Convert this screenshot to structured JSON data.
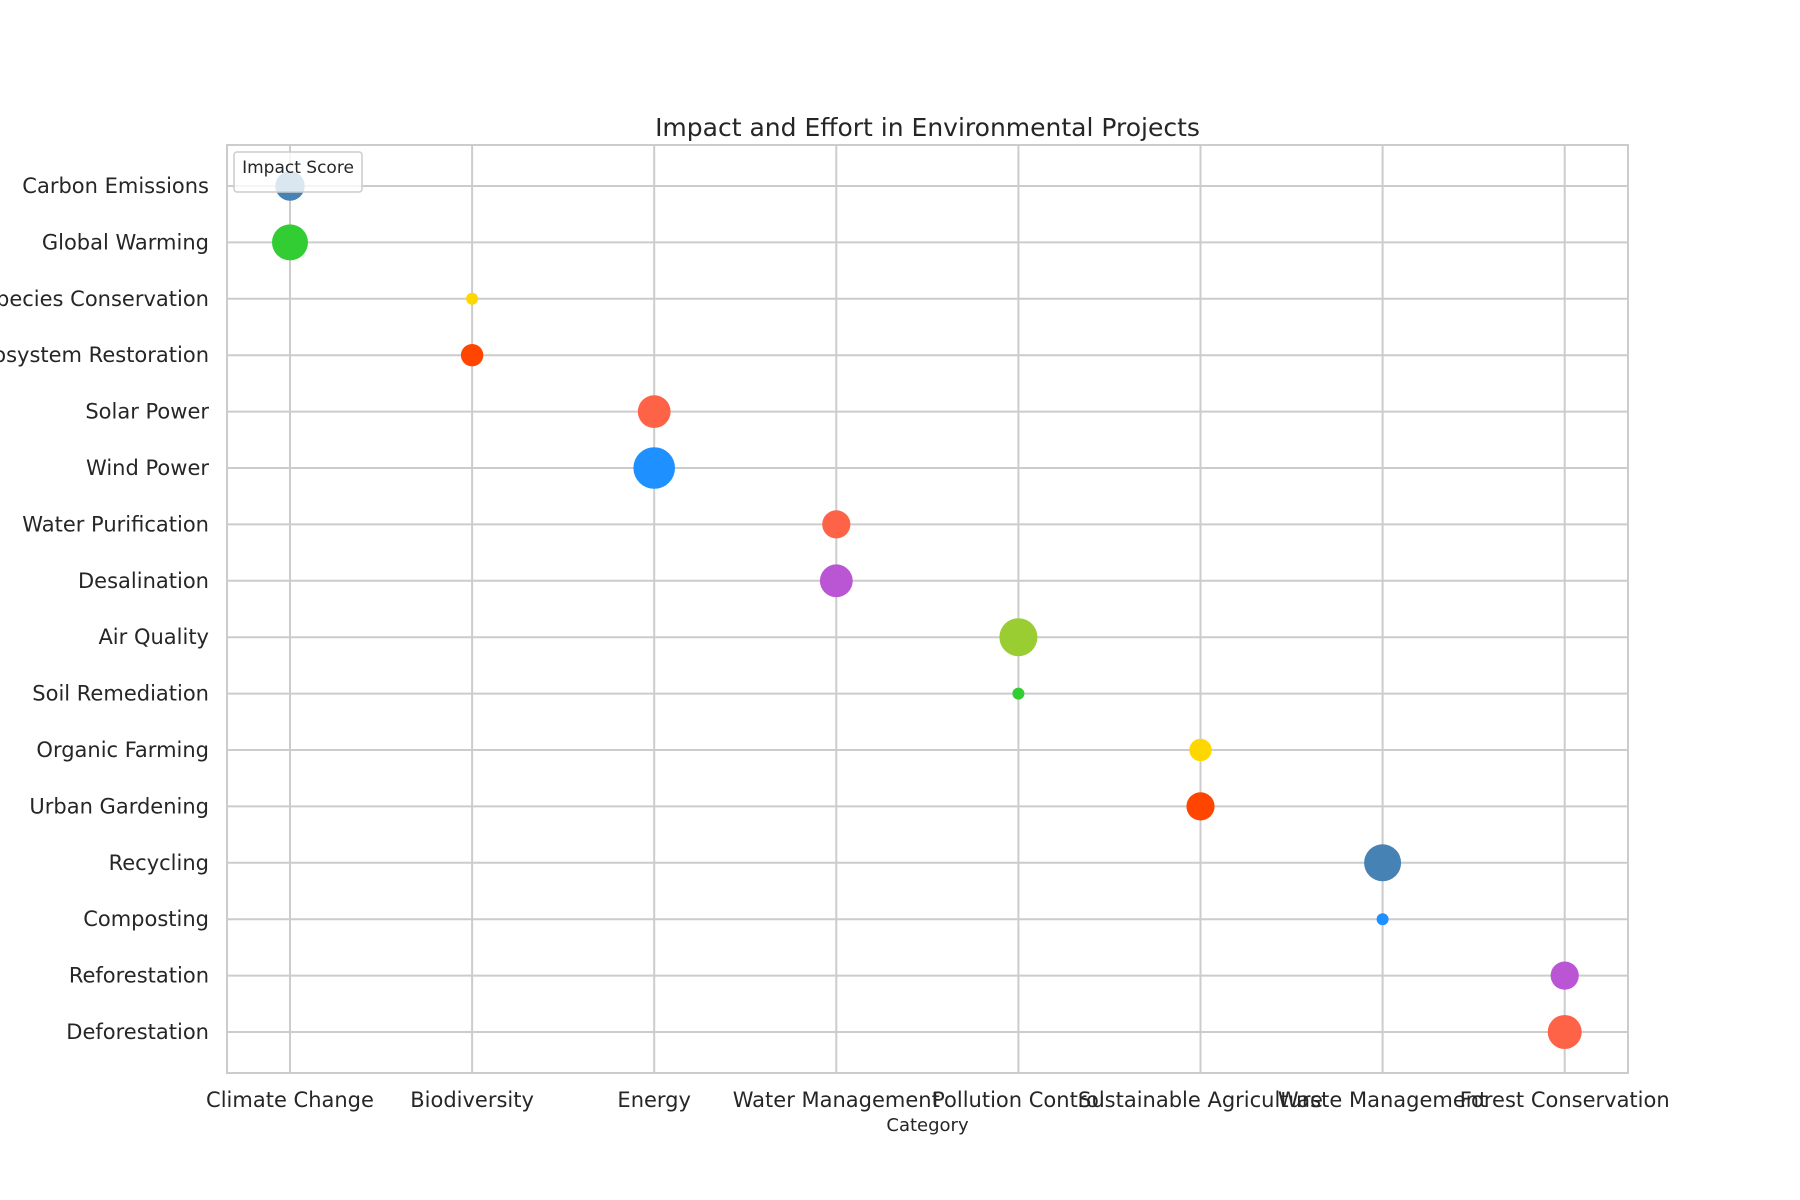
{
  "chart_data": {
    "type": "scatter",
    "title": "Impact and Effort in Environmental Projects",
    "xlabel": "Category",
    "ylabel": "",
    "x_categories": [
      "Climate Change",
      "Biodiversity",
      "Energy",
      "Water Management",
      "Pollution Control",
      "Sustainable Agriculture",
      "Waste Management",
      "Forest Conservation"
    ],
    "y_categories": [
      "Carbon Emissions",
      "Global Warming",
      "Species Conservation",
      "Ecosystem Restoration",
      "Solar Power",
      "Wind Power",
      "Water Purification",
      "Desalination",
      "Air Quality",
      "Soil Remediation",
      "Organic Farming",
      "Urban Gardening",
      "Recycling",
      "Composting",
      "Reforestation",
      "Deforestation"
    ],
    "legend": {
      "title": "Impact Score",
      "position": "top-left"
    },
    "grid": true,
    "points": [
      {
        "x": "Climate Change",
        "y": "Carbon Emissions",
        "size": 6,
        "color": "#4682B4"
      },
      {
        "x": "Climate Change",
        "y": "Global Warming",
        "size": 9,
        "color": "#32CD32"
      },
      {
        "x": "Biodiversity",
        "y": "Species Conservation",
        "size": 1,
        "color": "#FFD700"
      },
      {
        "x": "Biodiversity",
        "y": "Ecosystem Restoration",
        "size": 3.5,
        "color": "#FF4500"
      },
      {
        "x": "Energy",
        "y": "Solar Power",
        "size": 7.5,
        "color": "#FF6347"
      },
      {
        "x": "Energy",
        "y": "Wind Power",
        "size": 12,
        "color": "#1E90FF"
      },
      {
        "x": "Water Management",
        "y": "Water Purification",
        "size": 5.5,
        "color": "#FF6347"
      },
      {
        "x": "Water Management",
        "y": "Desalination",
        "size": 7.5,
        "color": "#BA55D3"
      },
      {
        "x": "Pollution Control",
        "y": "Air Quality",
        "size": 10,
        "color": "#9ACD32"
      },
      {
        "x": "Pollution Control",
        "y": "Soil Remediation",
        "size": 1,
        "color": "#32CD32"
      },
      {
        "x": "Sustainable Agriculture",
        "y": "Organic Farming",
        "size": 3.5,
        "color": "#FFD700"
      },
      {
        "x": "Sustainable Agriculture",
        "y": "Urban Gardening",
        "size": 5.5,
        "color": "#FF4500"
      },
      {
        "x": "Waste Management",
        "y": "Recycling",
        "size": 9.5,
        "color": "#4682B4"
      },
      {
        "x": "Waste Management",
        "y": "Composting",
        "size": 1,
        "color": "#1E90FF"
      },
      {
        "x": "Forest Conservation",
        "y": "Reforestation",
        "size": 5.5,
        "color": "#BA55D3"
      },
      {
        "x": "Forest Conservation",
        "y": "Deforestation",
        "size": 8,
        "color": "#FF6347"
      }
    ]
  }
}
